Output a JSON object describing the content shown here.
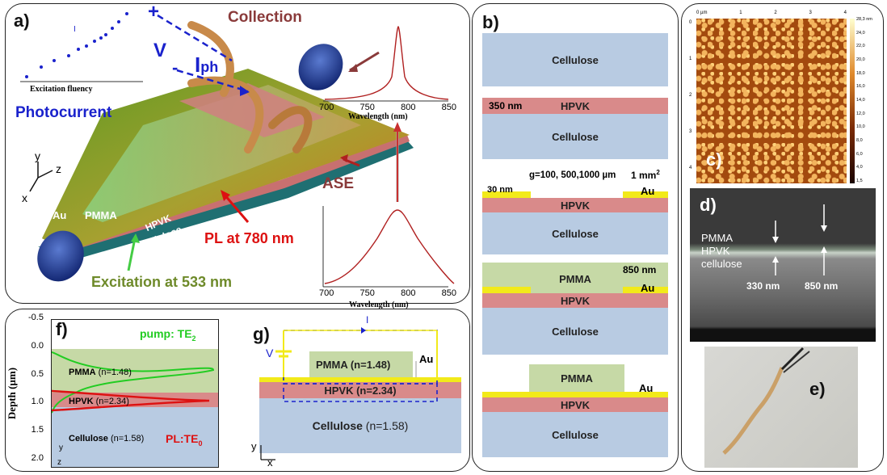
{
  "panel_a": {
    "label": "a)",
    "collection": "Collection",
    "photocurrent": "Photocurrent",
    "v": "V",
    "iph": "I",
    "iph_sub": "ph",
    "plus": "+",
    "minus": "-",
    "i_small": "I",
    "excitation_fluency": "Excitation fluency",
    "ase": "ASE",
    "pl": "PL at 780 nm",
    "excitation": "Excitation at 533 nm",
    "au": "Au",
    "pmma": "PMMA",
    "hpvk": "HPVK",
    "cellulose": "Cellulose",
    "axis_y": "y",
    "axis_z": "z",
    "axis_x": "x",
    "spectrum_top_ticks": [
      "700",
      "750",
      "800",
      "850"
    ],
    "spectrum_bottom_ticks": [
      "700",
      "750",
      "800",
      "850"
    ],
    "wavelength_label": "Wavelength (nm)"
  },
  "panel_b": {
    "label": "b)",
    "cellulose": "Cellulose",
    "hpvk": "HPVK",
    "pmma": "PMMA",
    "au": "Au",
    "thick_350": "350 nm",
    "gap": "g=100, 500,1000 µm",
    "area": "1 mm",
    "area_sup": "2",
    "thick_30": "30 nm",
    "thick_850": "850 nm"
  },
  "panel_c": {
    "label": "c)",
    "top_ticks": [
      "0 µm",
      "1",
      "2",
      "3",
      "4"
    ],
    "left_ticks": [
      "0",
      "1",
      "2",
      "3",
      "4"
    ],
    "scale": [
      "28,3 nm",
      "24,0",
      "22,0",
      "20,0",
      "18,0",
      "16,0",
      "14,0",
      "12,0",
      "10,0",
      "8,0",
      "6,0",
      "4,0",
      "1,5"
    ]
  },
  "panel_d": {
    "label": "d)",
    "pmma": "PMMA",
    "hpvk": "HPVK",
    "cellulose": "cellulose",
    "t330": "330 nm",
    "t850": "850 nm"
  },
  "panel_e": {
    "label": "e)"
  },
  "panel_f": {
    "label": "f)",
    "pump": "pump: TE",
    "pump_sub": "2",
    "pl": "PL:TE",
    "pl_sub": "0",
    "ylabel": "Depth (µm)",
    "yticks": [
      "-0.5",
      "0.0",
      "0.5",
      "1.0",
      "1.5",
      "2.0"
    ],
    "pmma": "PMMA",
    "pmma_n": "(n=1.48)",
    "hpvk": "HPVK",
    "hpvk_n": "(n=2.34)",
    "cellulose": "Cellulose",
    "cellulose_n": "(n=1.58)",
    "axis_y": "y",
    "axis_z": "z"
  },
  "panel_g": {
    "label": "g)",
    "i": "I",
    "v": "V",
    "pmma": "PMMA (n=1.48)",
    "au": "Au",
    "hpvk": "HPVK (n=2.34)",
    "cellulose": "Cellulose",
    "cellulose_n": "(n=1.58)",
    "axis_y": "y",
    "axis_x": "x"
  },
  "colors": {
    "cellulose": "#b8cbe2",
    "hpvk": "#d98a8a",
    "pmma": "#c6d9a6",
    "au": "#f2ea1a",
    "pump": "#22cc22",
    "pl": "#dd1111",
    "blue": "#1a22cc",
    "brown": "#8a3a3a"
  }
}
